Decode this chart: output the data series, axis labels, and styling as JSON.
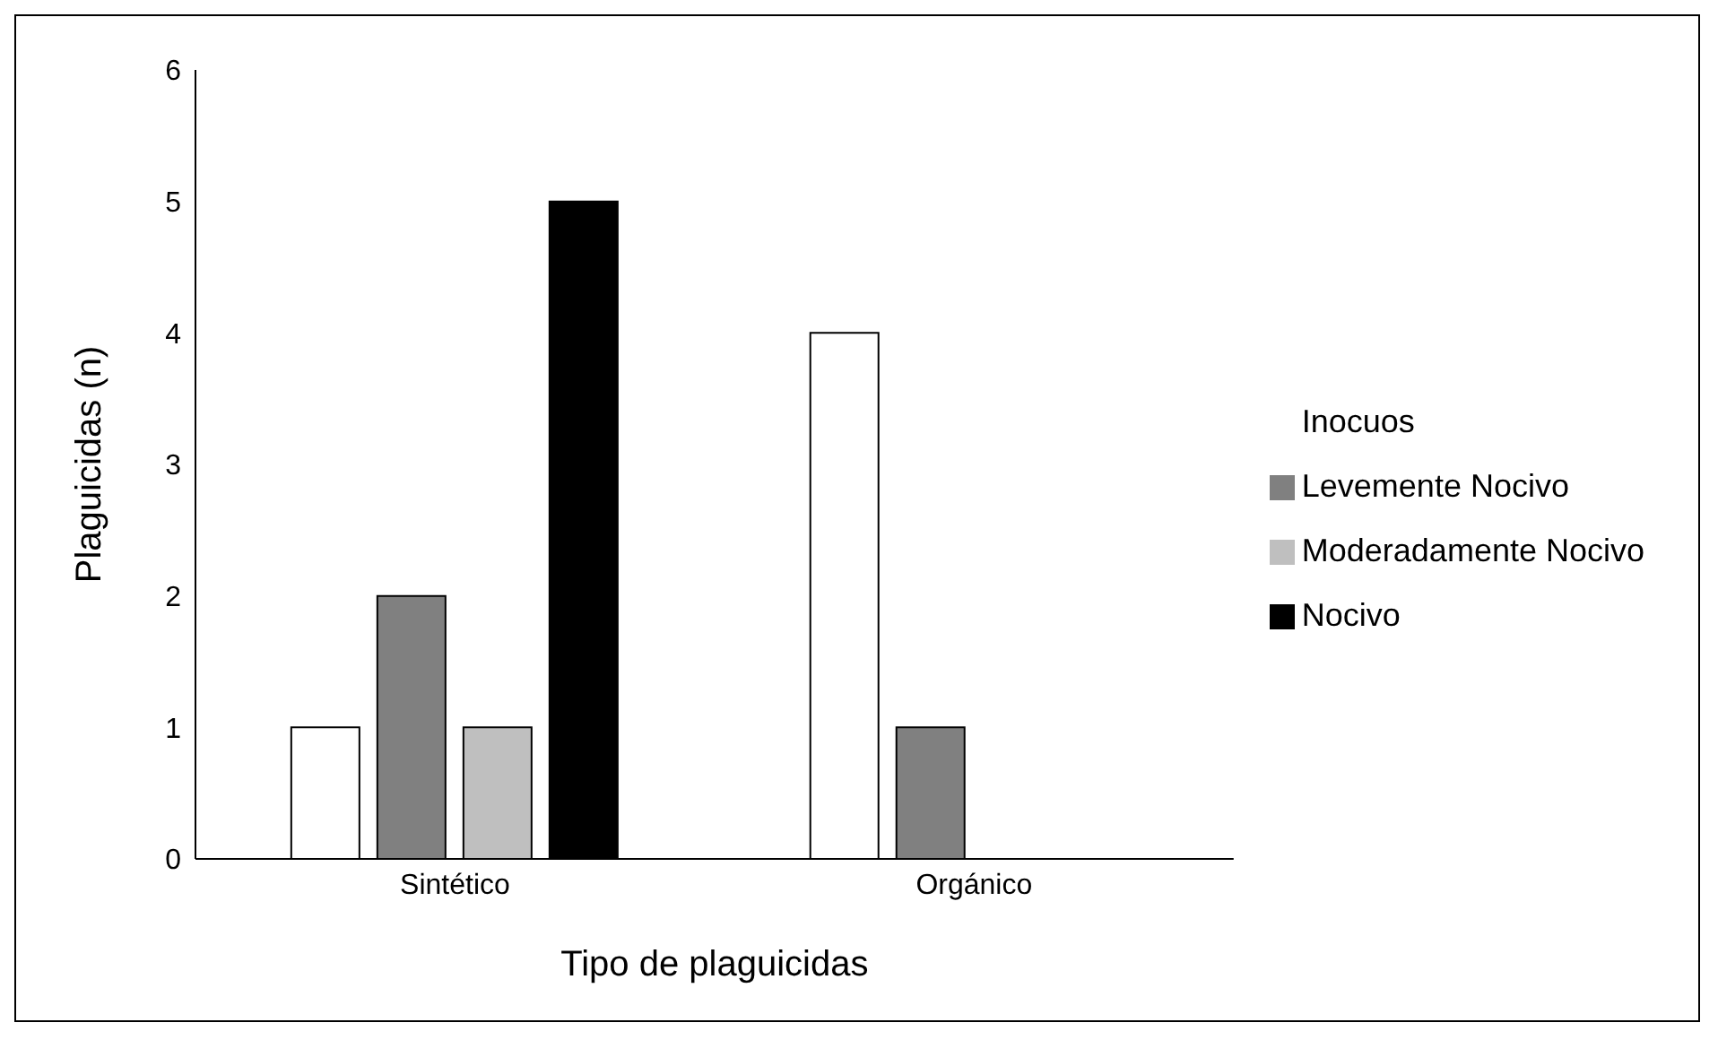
{
  "chart_data": {
    "type": "bar",
    "xlabel": "Tipo de plaguicidas",
    "ylabel": "Plaguicidas (n)",
    "categories": [
      "Sintético",
      "Orgánico"
    ],
    "series": [
      {
        "name": "Inocuos",
        "color": "#ffffff",
        "values": [
          1,
          4
        ]
      },
      {
        "name": "Levemente Nocivo",
        "color": "#808080",
        "values": [
          2,
          1
        ]
      },
      {
        "name": "Moderadamente Nocivo",
        "color": "#bfbfbf",
        "values": [
          1,
          0
        ]
      },
      {
        "name": "Nocivo",
        "color": "#000000",
        "values": [
          5,
          0
        ]
      }
    ],
    "ylim": [
      0,
      6
    ],
    "yticks": [
      0,
      1,
      2,
      3,
      4,
      5,
      6
    ],
    "grid": false,
    "legend": "right"
  }
}
